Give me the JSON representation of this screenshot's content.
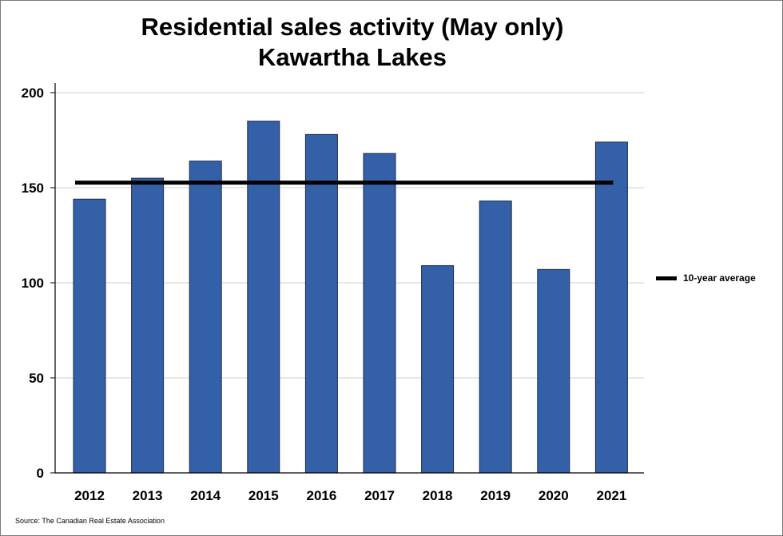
{
  "title_line1": "Residential sales activity (May only)",
  "title_line2": "Kawartha Lakes",
  "source": "Source: The Canadian Real Estate Association",
  "chart_data": {
    "type": "bar",
    "title": "Residential sales activity (May only) Kawartha Lakes",
    "categories": [
      "2012",
      "2013",
      "2014",
      "2015",
      "2016",
      "2017",
      "2018",
      "2019",
      "2020",
      "2021"
    ],
    "values": [
      144,
      155,
      164,
      185,
      178,
      168,
      109,
      143,
      107,
      174
    ],
    "average": {
      "name": "10-year average",
      "value": 152.7
    },
    "ylim": [
      0,
      200
    ],
    "yticks": [
      0,
      50,
      100,
      150,
      200
    ],
    "grid": true,
    "legend_position": "right",
    "colors": {
      "bar": "#3460a8",
      "bar_border": "#1a2a4a",
      "average_line": "#000000",
      "grid": "#cccccc"
    }
  }
}
